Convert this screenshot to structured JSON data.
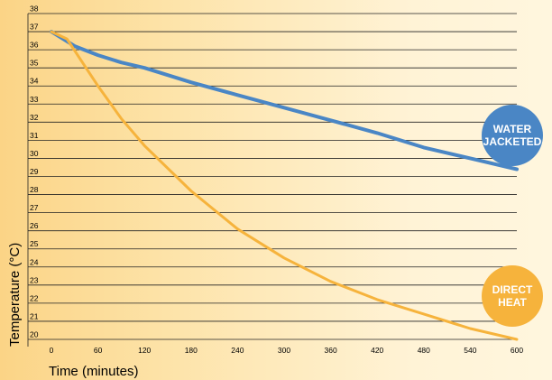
{
  "chart_data": {
    "type": "line",
    "xlabel": "Time (minutes)",
    "ylabel": "Temperature (°C)",
    "xlim": [
      0,
      600
    ],
    "ylim": [
      20,
      38
    ],
    "x_ticks": [
      0,
      60,
      120,
      180,
      240,
      300,
      360,
      420,
      480,
      540,
      600
    ],
    "y_ticks": [
      20,
      21,
      22,
      23,
      24,
      25,
      26,
      27,
      28,
      29,
      30,
      31,
      32,
      33,
      34,
      35,
      36,
      37,
      38
    ],
    "grid": "horizontal",
    "series": [
      {
        "name": "WATER JACKETED",
        "color": "#4a86c5",
        "points": [
          [
            0,
            37.0
          ],
          [
            30,
            36.2
          ],
          [
            60,
            35.7
          ],
          [
            90,
            35.3
          ],
          [
            120,
            35.0
          ],
          [
            180,
            34.2
          ],
          [
            240,
            33.5
          ],
          [
            300,
            32.8
          ],
          [
            360,
            32.1
          ],
          [
            420,
            31.4
          ],
          [
            480,
            30.6
          ],
          [
            540,
            30.0
          ],
          [
            600,
            29.4
          ]
        ]
      },
      {
        "name": "DIRECT HEAT",
        "color": "#f6b33c",
        "points": [
          [
            0,
            37.0
          ],
          [
            20,
            36.6
          ],
          [
            40,
            35.3
          ],
          [
            60,
            34.0
          ],
          [
            90,
            32.2
          ],
          [
            120,
            30.7
          ],
          [
            180,
            28.2
          ],
          [
            240,
            26.1
          ],
          [
            300,
            24.5
          ],
          [
            360,
            23.2
          ],
          [
            420,
            22.2
          ],
          [
            480,
            21.4
          ],
          [
            540,
            20.6
          ],
          [
            600,
            20.0
          ]
        ]
      }
    ]
  }
}
